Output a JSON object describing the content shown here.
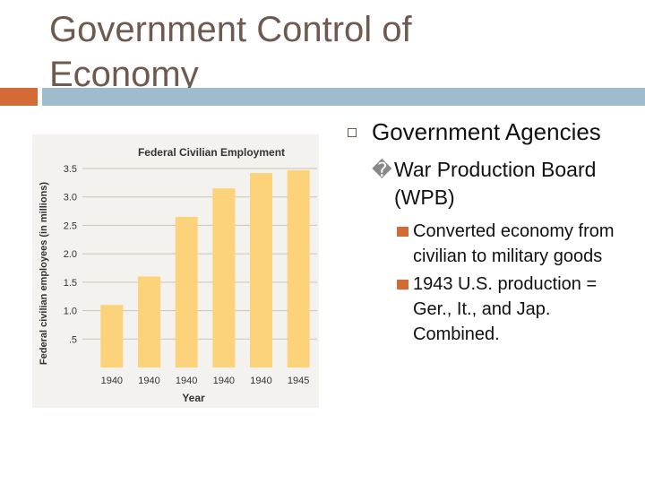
{
  "slide": {
    "title": "Government Control of Economy",
    "bullets": {
      "l1": "Government Agencies",
      "l2_marker": "�",
      "l2": "War Production Board (WPB)",
      "l3": [
        "Converted economy from civilian to military goods",
        "1943 U.S. production = Ger., It., and Jap. Combined."
      ]
    },
    "colors": {
      "title": "#6e5a4e",
      "accent_orange": "#d46a35",
      "accent_blue": "#9ebccc",
      "bar": "#fcd37b"
    }
  },
  "chart_data": {
    "type": "bar",
    "title": "Federal Civilian Employment",
    "xlabel": "Year",
    "ylabel": "Federal civilian employees (in millions)",
    "categories": [
      "1940",
      "1940",
      "1940",
      "1940",
      "1940",
      "1945"
    ],
    "values": [
      1.1,
      1.6,
      2.65,
      3.15,
      3.42,
      3.47
    ],
    "ylim": [
      0,
      3.5
    ],
    "yticks": [
      ".5",
      "1.0",
      "1.5",
      "2.0",
      "2.5",
      "3.0",
      "3.5"
    ],
    "ytick_values": [
      0.5,
      1.0,
      1.5,
      2.0,
      2.5,
      3.0,
      3.5
    ],
    "grid": true
  }
}
